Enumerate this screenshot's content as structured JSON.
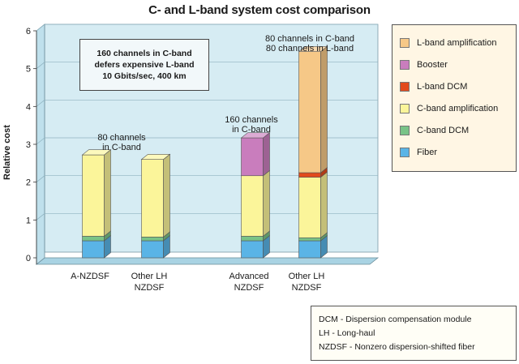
{
  "chart_data": {
    "type": "bar",
    "stacked": true,
    "title": "C- and L-band system cost comparison",
    "ylabel": "Relative cost",
    "ylim": [
      0,
      6
    ],
    "yticks": [
      "0",
      "1",
      "2",
      "3",
      "4",
      "5",
      "6"
    ],
    "grid": true,
    "legend_position": "right",
    "categories": [
      [
        "A-NZDSF"
      ],
      [
        "Other LH",
        "NZDSF"
      ],
      [
        "Advanced",
        "NZDSF"
      ],
      [
        "Other LH",
        "NZDSF"
      ]
    ],
    "series": [
      {
        "name": "Fiber",
        "color": "#5ab4e6",
        "values": [
          0.45,
          0.45,
          0.45,
          0.45
        ]
      },
      {
        "name": "C-band DCM",
        "color": "#79c387",
        "values": [
          0.12,
          0.1,
          0.12,
          0.08
        ]
      },
      {
        "name": "C-band amplification",
        "color": "#fbf59a",
        "values": [
          2.15,
          2.05,
          1.6,
          1.6
        ]
      },
      {
        "name": "L-band DCM",
        "color": "#e24a1c",
        "values": [
          0,
          0,
          0,
          0.12
        ]
      },
      {
        "name": "Booster",
        "color": "#c97dbd",
        "values": [
          0,
          0,
          1.0,
          0
        ]
      },
      {
        "name": "L-band amplification",
        "color": "#f6c887",
        "values": [
          0,
          0,
          0,
          3.2
        ]
      }
    ],
    "annotations": [
      {
        "lines": [
          "80 channels",
          "in C-band"
        ],
        "bars": [
          0,
          1
        ]
      },
      {
        "lines": [
          "160 channels",
          "in C-band"
        ],
        "bars": [
          2
        ]
      },
      {
        "lines": [
          "80 channels in C-band",
          "80 channels in L-band"
        ],
        "bars": [
          3
        ]
      }
    ],
    "note": [
      "160 channels in C-band",
      "defers expensive L-band",
      "10 Gbits/sec, 400 km"
    ],
    "abbreviations": [
      "DCM - Dispersion compensation module",
      "LH - Long-haul",
      "NZDSF - Nonzero dispersion-shifted fiber"
    ],
    "legend_order": [
      "L-band amplification",
      "Booster",
      "L-band DCM",
      "C-band amplification",
      "C-band DCM",
      "Fiber"
    ]
  }
}
